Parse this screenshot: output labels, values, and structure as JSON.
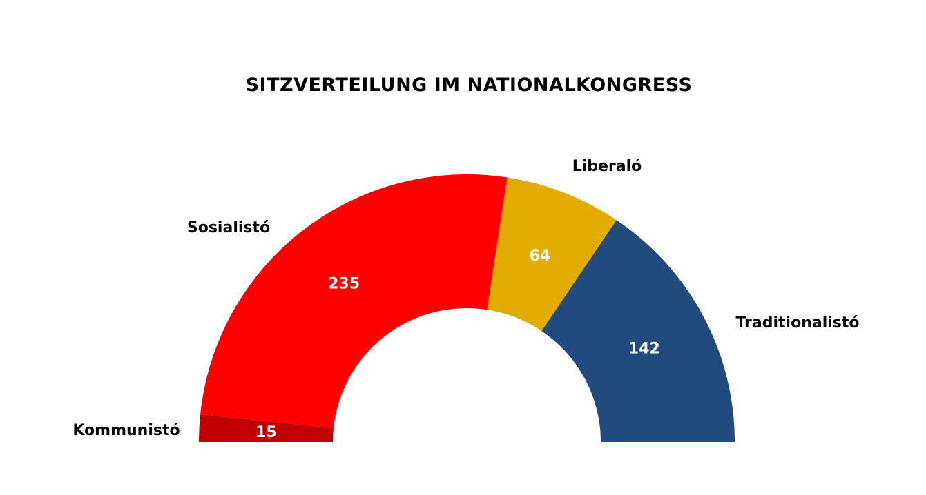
{
  "chart_data": {
    "type": "pie",
    "variant": "semicircle-donut",
    "title": "SITZVERTEILUNG IM NATIONALKONGRESS",
    "categories": [
      "Kommunistó",
      "Sosialistó",
      "Liberaló",
      "Traditionalistó"
    ],
    "values": [
      15,
      235,
      64,
      142
    ],
    "colors": [
      "#c00000",
      "#ff0000",
      "#e0ad00",
      "#214b7e"
    ],
    "data_labels": true,
    "legend": "none"
  }
}
